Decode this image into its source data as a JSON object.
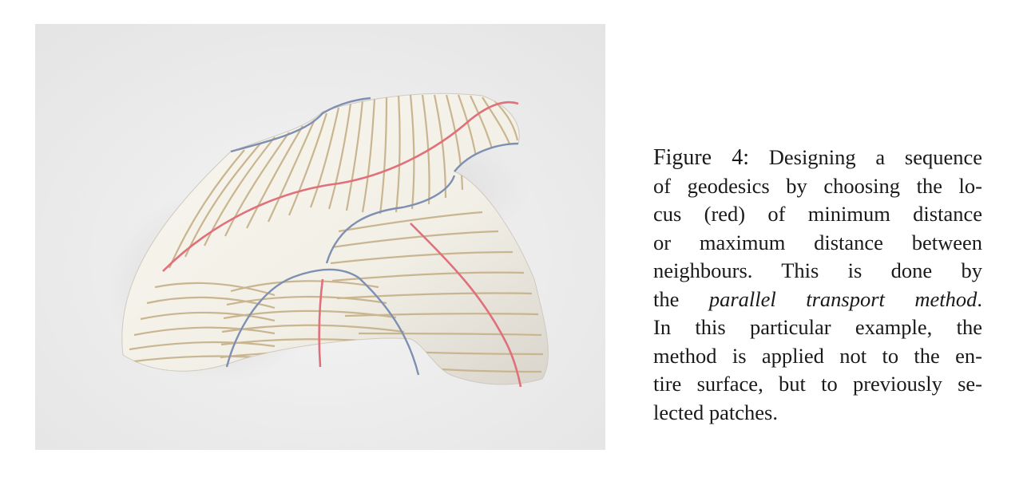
{
  "figure": {
    "label": "Figure 4:",
    "caption_lines": [
      [
        "Designing a sequence"
      ],
      [
        "of geodesics by choosing the lo-"
      ],
      [
        "cus (red) of minimum distance"
      ],
      [
        "or maximum distance between"
      ],
      [
        "neighbours.  This is done by"
      ],
      [
        "the ",
        "parallel transport method",
        "."
      ],
      [
        "In this particular example, the"
      ],
      [
        "method is applied not to the en-"
      ],
      [
        "tire surface, but to previously se-"
      ],
      [
        "lected patches."
      ]
    ],
    "colors": {
      "background": "#ebebeb",
      "surface": "#f7f5ee",
      "geodesic_lines": "#c9b58f",
      "locus_lines": "#e0707a",
      "patch_boundaries": "#7f8fb2"
    },
    "image_description_icon": "geodesic-surface-render"
  }
}
